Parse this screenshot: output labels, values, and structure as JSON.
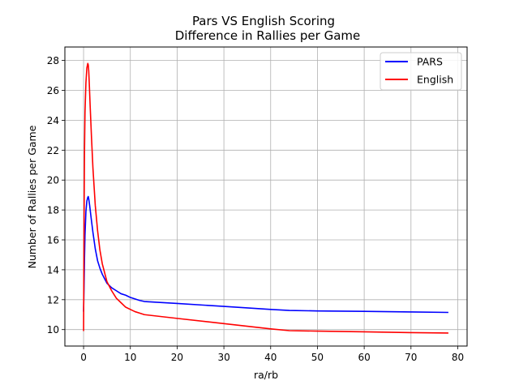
{
  "chart_data": {
    "type": "line",
    "title_line1": "Pars VS English Scoring",
    "title_line2": "Difference in Rallies per Game",
    "xlabel": "ra/rb",
    "ylabel": "Number of Rallies per Game",
    "xlim": [
      -4,
      82
    ],
    "ylim": [
      8.9,
      28.9
    ],
    "xticks": [
      0,
      10,
      20,
      30,
      40,
      50,
      60,
      70,
      80
    ],
    "yticks": [
      10,
      12,
      14,
      16,
      18,
      20,
      22,
      24,
      26,
      28
    ],
    "grid": true,
    "legend_position": "top-right",
    "series": [
      {
        "name": "PARS",
        "color": "#0000ff",
        "x": [
          0.0,
          0.1,
          0.2,
          0.3,
          0.5,
          0.7,
          0.9,
          1.0,
          1.1,
          1.3,
          1.6,
          2.0,
          2.5,
          3.0,
          3.5,
          4.0,
          5.0,
          6.0,
          7.0,
          8.0,
          9.0,
          10.0,
          11.0,
          12.0,
          13.0,
          20.0,
          30.0,
          40.0,
          44.0,
          50.0,
          60.0,
          70.0,
          78.0
        ],
        "y": [
          11.2,
          13.0,
          14.8,
          16.3,
          17.9,
          18.6,
          18.85,
          18.9,
          18.75,
          18.3,
          17.5,
          16.5,
          15.4,
          14.6,
          14.1,
          13.7,
          13.1,
          12.8,
          12.6,
          12.4,
          12.3,
          12.15,
          12.05,
          11.95,
          11.88,
          11.75,
          11.55,
          11.35,
          11.28,
          11.25,
          11.22,
          11.18,
          11.15
        ]
      },
      {
        "name": "English",
        "color": "#ff0000",
        "x": [
          0.0,
          0.05,
          0.1,
          0.2,
          0.3,
          0.5,
          0.7,
          0.9,
          1.0,
          1.1,
          1.2,
          1.4,
          1.7,
          2.0,
          2.5,
          3.0,
          3.5,
          4.0,
          5.0,
          6.0,
          7.0,
          8.0,
          9.0,
          10.0,
          11.0,
          12.0,
          13.0,
          20.0,
          30.0,
          40.0,
          44.0,
          50.0,
          60.0,
          70.0,
          78.0
        ],
        "y": [
          9.9,
          13.5,
          17.5,
          22.0,
          24.5,
          26.5,
          27.5,
          27.8,
          27.7,
          27.3,
          26.6,
          25.0,
          22.8,
          20.8,
          18.3,
          16.6,
          15.3,
          14.4,
          13.2,
          12.6,
          12.1,
          11.8,
          11.5,
          11.35,
          11.2,
          11.1,
          11.0,
          10.75,
          10.4,
          10.05,
          9.93,
          9.9,
          9.85,
          9.8,
          9.77
        ]
      }
    ]
  }
}
